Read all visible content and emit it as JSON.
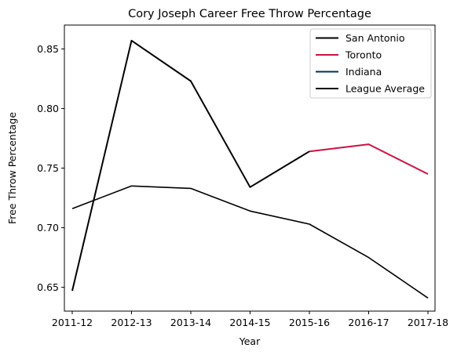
{
  "chart_data": {
    "type": "line",
    "title": "Cory Joseph Career Free Throw Percentage",
    "xlabel": "Year",
    "ylabel": "Free Throw Percentage",
    "categories": [
      "2011-12",
      "2012-13",
      "2013-14",
      "2014-15",
      "2015-16",
      "2016-17",
      "2017-18"
    ],
    "ylim": [
      0.63,
      0.87
    ],
    "yticks": [
      0.65,
      0.7,
      0.75,
      0.8,
      0.85
    ],
    "ytick_labels": [
      "0.65",
      "0.70",
      "0.75",
      "0.80",
      "0.85"
    ],
    "grid": false,
    "legend_position": "top-right",
    "series": [
      {
        "name": "San Antonio",
        "color": "#000000",
        "values": [
          0.647,
          0.857,
          0.823,
          0.734,
          0.764,
          null,
          null
        ]
      },
      {
        "name": "Toronto",
        "color": "#CE1141",
        "values": [
          null,
          null,
          null,
          null,
          0.764,
          0.77,
          0.745
        ]
      },
      {
        "name": "Indiana",
        "color": "#002D62",
        "values": [
          null,
          null,
          null,
          null,
          null,
          null,
          null
        ]
      },
      {
        "name": "League Average",
        "color": "#000000",
        "values": [
          0.716,
          0.735,
          0.733,
          0.714,
          0.703,
          0.675,
          0.641
        ]
      }
    ]
  }
}
